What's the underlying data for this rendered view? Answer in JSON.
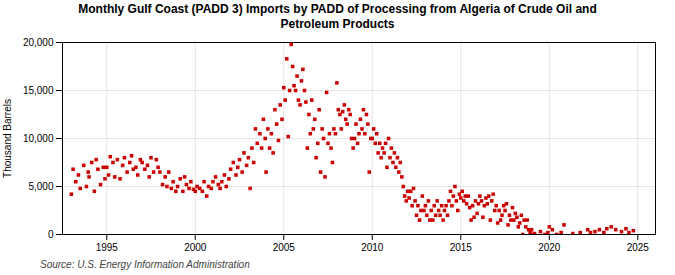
{
  "chart_data": {
    "type": "scatter",
    "title": "Monthly Gulf Coast (PADD 3) Imports by PADD of Processing from Algeria of Crude Oil and\nPetroleum Products",
    "ylabel": "Thousand Barrels",
    "annotations": [
      "Source: U.S. Energy Information Administration"
    ],
    "color": "#cc0000",
    "marker": "square",
    "grid": true,
    "xlim": [
      1992.5,
      2026.0
    ],
    "xticks": [
      1995,
      2000,
      2005,
      2010,
      2015,
      2020,
      2025
    ],
    "ylim": [
      0,
      20000
    ],
    "yticks": [
      0,
      {
        "value": 5000,
        "label": "5,000"
      },
      {
        "value": 10000,
        "label": "10,000"
      },
      {
        "value": 15000,
        "label": "15,000"
      },
      {
        "value": 20000,
        "label": "20,000"
      }
    ],
    "x": [
      1993.0,
      1993.1,
      1993.25,
      1993.4,
      1993.5,
      1993.7,
      1993.85,
      1993.95,
      1994.0,
      1994.15,
      1994.3,
      1994.4,
      1994.5,
      1994.65,
      1994.8,
      1994.9,
      1995.0,
      1995.1,
      1995.2,
      1995.35,
      1995.45,
      1995.6,
      1995.75,
      1995.9,
      1996.0,
      1996.15,
      1996.3,
      1996.4,
      1996.5,
      1996.65,
      1996.75,
      1996.9,
      1997.0,
      1997.15,
      1997.3,
      1997.4,
      1997.5,
      1997.65,
      1997.8,
      1997.9,
      1998.0,
      1998.15,
      1998.3,
      1998.4,
      1998.5,
      1998.65,
      1998.75,
      1998.9,
      1999.0,
      1999.15,
      1999.3,
      1999.4,
      1999.5,
      1999.65,
      1999.75,
      1999.9,
      2000.0,
      2000.1,
      2000.25,
      2000.4,
      2000.5,
      2000.65,
      2000.75,
      2000.9,
      2001.0,
      2001.15,
      2001.3,
      2001.4,
      2001.5,
      2001.65,
      2001.75,
      2001.9,
      2002.0,
      2002.15,
      2002.3,
      2002.4,
      2002.5,
      2002.65,
      2002.75,
      2002.9,
      2003.0,
      2003.1,
      2003.2,
      2003.3,
      2003.4,
      2003.5,
      2003.65,
      2003.75,
      2003.85,
      2003.95,
      2004.0,
      2004.1,
      2004.2,
      2004.3,
      2004.4,
      2004.5,
      2004.6,
      2004.7,
      2004.8,
      2004.9,
      2005.0,
      2005.08,
      2005.17,
      2005.25,
      2005.33,
      2005.42,
      2005.5,
      2005.58,
      2005.67,
      2005.75,
      2005.83,
      2005.92,
      2006.0,
      2006.08,
      2006.17,
      2006.25,
      2006.33,
      2006.42,
      2006.5,
      2006.58,
      2006.67,
      2006.75,
      2006.83,
      2006.92,
      2007.0,
      2007.08,
      2007.17,
      2007.25,
      2007.33,
      2007.42,
      2007.5,
      2007.58,
      2007.67,
      2007.75,
      2007.83,
      2007.92,
      2008.0,
      2008.08,
      2008.17,
      2008.25,
      2008.33,
      2008.42,
      2008.5,
      2008.58,
      2008.67,
      2008.75,
      2008.83,
      2008.92,
      2009.0,
      2009.08,
      2009.17,
      2009.25,
      2009.33,
      2009.42,
      2009.5,
      2009.58,
      2009.67,
      2009.75,
      2009.83,
      2009.92,
      2010.0,
      2010.08,
      2010.17,
      2010.25,
      2010.33,
      2010.42,
      2010.5,
      2010.58,
      2010.67,
      2010.75,
      2010.83,
      2010.92,
      2011.0,
      2011.08,
      2011.17,
      2011.25,
      2011.33,
      2011.42,
      2011.5,
      2011.58,
      2011.67,
      2011.75,
      2011.83,
      2011.92,
      2012.0,
      2012.08,
      2012.17,
      2012.25,
      2012.33,
      2012.42,
      2012.5,
      2012.58,
      2012.67,
      2012.75,
      2012.83,
      2012.92,
      2013.0,
      2013.08,
      2013.17,
      2013.25,
      2013.33,
      2013.42,
      2013.5,
      2013.58,
      2013.67,
      2013.75,
      2013.83,
      2013.92,
      2014.0,
      2014.08,
      2014.17,
      2014.25,
      2014.33,
      2014.42,
      2014.5,
      2014.58,
      2014.67,
      2014.75,
      2014.83,
      2014.92,
      2015.0,
      2015.08,
      2015.17,
      2015.25,
      2015.33,
      2015.42,
      2015.5,
      2015.58,
      2015.67,
      2015.75,
      2015.83,
      2015.92,
      2016.0,
      2016.08,
      2016.17,
      2016.25,
      2016.33,
      2016.42,
      2016.5,
      2016.58,
      2016.67,
      2016.75,
      2016.83,
      2016.92,
      2017.0,
      2017.08,
      2017.17,
      2017.25,
      2017.33,
      2017.42,
      2017.5,
      2017.58,
      2017.67,
      2017.75,
      2017.83,
      2017.92,
      2018.0,
      2018.08,
      2018.17,
      2018.25,
      2018.33,
      2018.42,
      2018.5,
      2018.58,
      2018.67,
      2018.75,
      2018.83,
      2018.92,
      2019.0,
      2019.08,
      2019.17,
      2019.5,
      2019.75,
      2019.92,
      2020.0,
      2020.17,
      2020.42,
      2020.67,
      2020.83,
      2021.33,
      2021.75,
      2022.17,
      2022.33,
      2022.58,
      2022.83,
      2023.08,
      2023.25,
      2023.5,
      2023.75,
      2024.08,
      2024.33,
      2024.5,
      2024.75
    ],
    "values": [
      4200,
      6800,
      5500,
      6200,
      4800,
      7200,
      5000,
      6500,
      6000,
      7500,
      4500,
      7800,
      6800,
      5200,
      7000,
      5800,
      7000,
      6200,
      8100,
      7500,
      6000,
      7800,
      5800,
      7200,
      8000,
      6500,
      7500,
      8200,
      6800,
      7000,
      6200,
      7800,
      7500,
      6800,
      7200,
      6000,
      8000,
      6500,
      7800,
      7000,
      6500,
      5200,
      6000,
      5000,
      6500,
      4800,
      5500,
      4500,
      5000,
      5800,
      4500,
      6000,
      5200,
      4800,
      5500,
      4700,
      4500,
      5000,
      4800,
      4500,
      5500,
      4000,
      5000,
      4800,
      5500,
      6000,
      5200,
      4800,
      5500,
      6200,
      5000,
      5800,
      6800,
      7500,
      6200,
      7000,
      7800,
      6500,
      8500,
      7200,
      8000,
      4800,
      9000,
      7500,
      11000,
      9500,
      10500,
      9000,
      12000,
      10000,
      6500,
      11000,
      9000,
      10500,
      8500,
      13000,
      11500,
      9800,
      13500,
      12000,
      15300,
      14000,
      18300,
      10200,
      15000,
      19800,
      17500,
      15500,
      15000,
      16500,
      14000,
      13500,
      16000,
      17200,
      15000,
      13800,
      9000,
      12500,
      10500,
      14000,
      11000,
      12000,
      8000,
      9500,
      13000,
      6500,
      11000,
      10000,
      6000,
      14800,
      9500,
      10500,
      9000,
      7500,
      11000,
      10500,
      15800,
      13000,
      12500,
      11000,
      12800,
      13500,
      12000,
      11500,
      13000,
      12500,
      10000,
      9000,
      10000,
      11500,
      9500,
      10500,
      12000,
      11000,
      13000,
      10500,
      12500,
      11500,
      6500,
      10000,
      10000,
      11000,
      9500,
      10500,
      8500,
      9500,
      8000,
      9000,
      8500,
      9500,
      7000,
      10000,
      8000,
      9000,
      7500,
      8500,
      7000,
      8000,
      6500,
      7500,
      6000,
      5000,
      4000,
      3500,
      4500,
      3800,
      4500,
      3000,
      4800,
      3500,
      2000,
      3000,
      1500,
      2500,
      4000,
      2500,
      3000,
      2000,
      3500,
      1500,
      2500,
      1500,
      3000,
      2000,
      3500,
      2500,
      2000,
      3000,
      1500,
      2500,
      3000,
      2000,
      3500,
      4500,
      3000,
      4000,
      5000,
      3500,
      2500,
      4200,
      3800,
      4500,
      3500,
      4000,
      3200,
      4000,
      2800,
      1500,
      3000,
      1800,
      3500,
      2200,
      3200,
      4000,
      3500,
      1800,
      3000,
      3800,
      3200,
      4000,
      1500,
      3500,
      4200,
      2500,
      3000,
      1200,
      2500,
      1500,
      2000,
      3000,
      2500,
      3200,
      1000,
      2000,
      1500,
      2800,
      1500,
      2200,
      1800,
      800,
      1200,
      2000,
      0,
      1500,
      800,
      1500,
      500,
      200,
      500,
      0,
      100,
      300,
      0,
      200,
      800,
      500,
      0,
      200,
      1000,
      100,
      200,
      500,
      200,
      300,
      500,
      200,
      600,
      800,
      500,
      300,
      600,
      200,
      400
    ]
  }
}
